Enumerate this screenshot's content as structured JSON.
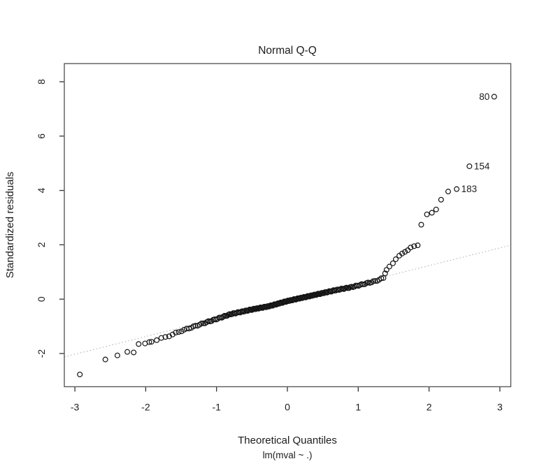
{
  "figure": {
    "title": "Normal Q-Q",
    "y_axis_label": "Standardized residuals",
    "x_axis_label": "Theoretical Quantiles",
    "model_label": "lm(mval ~ .)"
  },
  "chart_data": {
    "type": "scatter",
    "title": "Normal Q-Q",
    "xlabel": "Theoretical Quantiles",
    "ylabel": "Standardized residuals",
    "subtitle": "lm(mval ~ .)",
    "grid": "off",
    "xlim": [
      -3.15,
      3.15
    ],
    "ylim": [
      -3.2,
      8.65
    ],
    "x_ticks": [
      -3,
      -2,
      -1,
      0,
      1,
      2,
      3
    ],
    "y_ticks": [
      -2,
      0,
      2,
      4,
      6,
      8
    ],
    "point_color": "#141414",
    "reference_line": {
      "style": "dotted",
      "slope": 0.652,
      "intercept": -0.07,
      "color": "#b3b3b3"
    },
    "labeled_points": [
      {
        "label": "80",
        "x": 2.92,
        "y": 7.45,
        "label_side": "left"
      },
      {
        "label": "154",
        "x": 2.57,
        "y": 4.89,
        "label_side": "right"
      },
      {
        "label": "183",
        "x": 2.39,
        "y": 4.05,
        "label_side": "right"
      }
    ],
    "lower_tail_points": [
      [
        -2.93,
        -2.77
      ],
      [
        -2.57,
        -2.22
      ],
      [
        -2.4,
        -2.07
      ],
      [
        -2.26,
        -1.94
      ],
      [
        -2.17,
        -1.96
      ],
      [
        -2.1,
        -1.65
      ],
      [
        -2.01,
        -1.63
      ],
      [
        -1.95,
        -1.58
      ]
    ],
    "upper_tail_points": [
      [
        1.38,
        0.95
      ],
      [
        1.4,
        1.08
      ],
      [
        1.44,
        1.2
      ],
      [
        1.49,
        1.32
      ],
      [
        1.53,
        1.47
      ],
      [
        1.58,
        1.6
      ],
      [
        1.62,
        1.68
      ],
      [
        1.66,
        1.74
      ],
      [
        1.7,
        1.8
      ],
      [
        1.74,
        1.9
      ],
      [
        1.79,
        1.95
      ],
      [
        1.84,
        1.98
      ],
      [
        1.89,
        2.74
      ],
      [
        1.97,
        3.12
      ],
      [
        2.04,
        3.18
      ],
      [
        2.1,
        3.3
      ],
      [
        2.17,
        3.66
      ],
      [
        2.27,
        3.96
      ]
    ],
    "bulk_band": {
      "count": 200,
      "x_min": -1.93,
      "x_max": 1.375,
      "curve": [
        [
          -1.95,
          -1.58
        ],
        [
          -1.7,
          -1.38
        ],
        [
          -1.5,
          -1.17
        ],
        [
          -1.2,
          -0.9
        ],
        [
          -1.0,
          -0.73
        ],
        [
          -0.8,
          -0.55
        ],
        [
          -0.5,
          -0.38
        ],
        [
          -0.26,
          -0.26
        ],
        [
          0.0,
          -0.07
        ],
        [
          0.34,
          0.13
        ],
        [
          0.68,
          0.33
        ],
        [
          0.9,
          0.44
        ],
        [
          1.1,
          0.57
        ],
        [
          1.25,
          0.67
        ],
        [
          1.375,
          0.8
        ]
      ]
    }
  }
}
